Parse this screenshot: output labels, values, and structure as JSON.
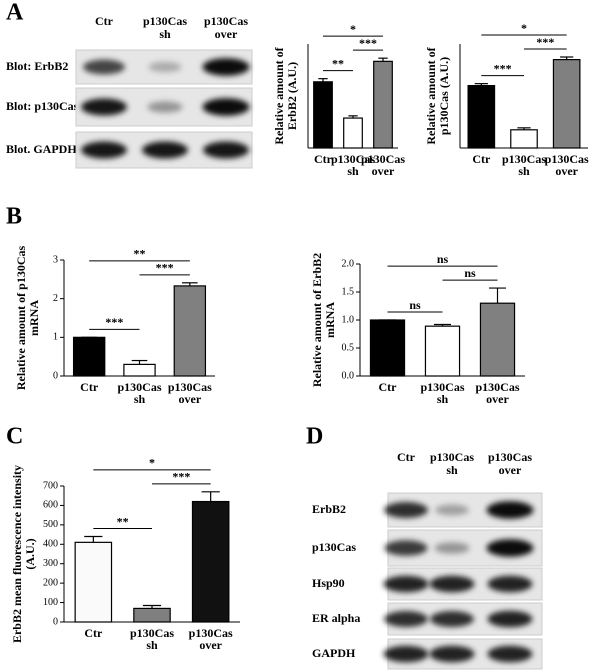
{
  "panel_labels": [
    "A",
    "B",
    "C",
    "D"
  ],
  "blot_a": {
    "columns": [
      [
        "Ctr"
      ],
      [
        "p130Cas",
        "sh"
      ],
      [
        "p130Cas",
        "over"
      ]
    ],
    "rows": [
      "Blot: ErbB2",
      "Blot: p130Cas",
      "Blot. GAPDH"
    ]
  },
  "blot_d": {
    "columns": [
      [
        "Ctr"
      ],
      [
        "p130Cas",
        "sh"
      ],
      [
        "p130Cas",
        "over"
      ]
    ],
    "rows": [
      "ErbB2",
      "p130Cas",
      "Hsp90",
      "ER alpha",
      "GAPDH"
    ]
  },
  "chart_data": [
    {
      "type": "bar",
      "y_label": [
        "Relative amount of",
        "ErbB2 (A.U.)"
      ],
      "categories": [
        [
          "Ctr"
        ],
        [
          "p130Cas",
          "sh"
        ],
        [
          "p130Cas",
          "over"
        ]
      ],
      "values": [
        2.1,
        0.95,
        2.75
      ],
      "errors": [
        0.1,
        0.07,
        0.1
      ],
      "colors": [
        "#000000",
        "#ffffff",
        "#808080"
      ],
      "ylim": [
        0,
        3.3
      ],
      "annotations": [
        {
          "text": "**",
          "from": 0,
          "to": 1
        },
        {
          "text": "***",
          "from": 1,
          "to": 2
        },
        {
          "text": "*",
          "from": 0,
          "to": 2
        }
      ]
    },
    {
      "type": "bar",
      "y_label": [
        "Relative amount of",
        "p130Cas (A.U.)"
      ],
      "categories": [
        [
          "Ctr"
        ],
        [
          "p130Cas",
          "sh"
        ],
        [
          "p130Cas",
          "over"
        ]
      ],
      "values": [
        4.8,
        1.4,
        6.8
      ],
      "errors": [
        0.15,
        0.15,
        0.2
      ],
      "colors": [
        "#000000",
        "#ffffff",
        "#808080"
      ],
      "ylim": [
        0,
        8
      ],
      "annotations": [
        {
          "text": "***",
          "from": 0,
          "to": 1
        },
        {
          "text": "***",
          "from": 1,
          "to": 2
        },
        {
          "text": "*",
          "from": 0,
          "to": 2
        }
      ]
    },
    {
      "type": "bar",
      "y_label": [
        "Relative amount of p130Cas",
        "mRNA"
      ],
      "categories": [
        [
          "Ctr"
        ],
        [
          "p130Cas",
          "sh"
        ],
        [
          "p130Cas",
          "over"
        ]
      ],
      "values": [
        1.0,
        0.3,
        2.33
      ],
      "errors": [
        0,
        0.1,
        0.08
      ],
      "colors": [
        "#000000",
        "#ffffff",
        "#808080"
      ],
      "ylim": [
        0,
        3
      ],
      "yticks": [
        0,
        1,
        2,
        3
      ],
      "annotations": [
        {
          "text": "***",
          "from": 0,
          "to": 1
        },
        {
          "text": "***",
          "from": 1,
          "to": 2
        },
        {
          "text": "**",
          "from": 0,
          "to": 2
        }
      ]
    },
    {
      "type": "bar",
      "y_label": [
        "Relative amount of ErbB2",
        "mRNA"
      ],
      "categories": [
        [
          "Ctr"
        ],
        [
          "p130Cas",
          "sh"
        ],
        [
          "p130Cas",
          "over"
        ]
      ],
      "values": [
        1.0,
        0.89,
        1.3
      ],
      "errors": [
        0,
        0.03,
        0.27
      ],
      "colors": [
        "#000000",
        "#ffffff",
        "#808080"
      ],
      "ylim": [
        0,
        2
      ],
      "yticks": [
        {
          "value": 0,
          "label": "0.0"
        },
        {
          "value": 0.5,
          "label": "0.5"
        },
        {
          "value": 1,
          "label": "1.0"
        },
        {
          "value": 1.5,
          "label": "1.5"
        },
        {
          "value": 2,
          "label": "2.0"
        }
      ],
      "annotations": [
        {
          "text": "ns",
          "from": 0,
          "to": 1
        },
        {
          "text": "ns",
          "from": 1,
          "to": 2
        },
        {
          "text": "ns",
          "from": 0,
          "to": 2
        }
      ]
    },
    {
      "type": "bar",
      "y_label": [
        "ErbB2 mean fluorescence intensity",
        "(A.U.)"
      ],
      "categories": [
        [
          "Ctr"
        ],
        [
          "p130Cas",
          "sh"
        ],
        [
          "p130Cas",
          "over"
        ]
      ],
      "values": [
        410,
        70,
        620
      ],
      "errors": [
        30,
        15,
        50
      ],
      "colors": [
        "#fafafa",
        "#7f7f7f",
        "#111111"
      ],
      "ylim": [
        0,
        700
      ],
      "yticks": [
        0,
        100,
        200,
        300,
        400,
        500,
        600,
        700
      ],
      "annotations": [
        {
          "text": "**",
          "from": 0,
          "to": 1
        },
        {
          "text": "***",
          "from": 1,
          "to": 2
        },
        {
          "text": "*",
          "from": 0,
          "to": 2
        }
      ]
    }
  ]
}
